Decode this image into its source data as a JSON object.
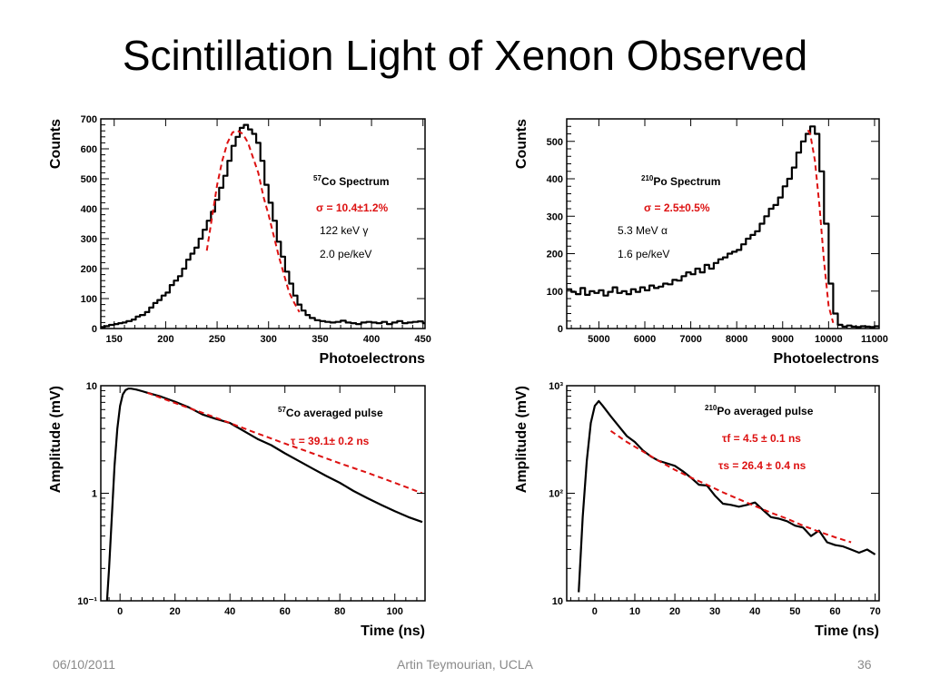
{
  "slide": {
    "title": "Scintillation Light of Xenon Observed",
    "footer_date": "06/10/2011",
    "footer_author": "Artin Teymourian, UCLA",
    "footer_page": "36"
  },
  "colors": {
    "data": "#000000",
    "fit": "#dd1111"
  },
  "chart_data": [
    {
      "type": "line",
      "step": true,
      "xlabel": "Photoelectrons",
      "ylabel": "Counts",
      "xlim": [
        137,
        452
      ],
      "ylim": [
        0,
        700
      ],
      "xticks": [
        150,
        200,
        250,
        300,
        350,
        400,
        450
      ],
      "yticks": [
        0,
        100,
        200,
        300,
        400,
        500,
        600,
        700
      ],
      "annotations": {
        "title_sup": "57",
        "title": "Co Spectrum",
        "sigma": "σ = 10.4±1.2%",
        "energy": "122 keV γ",
        "yield": "2.0 pe/keV"
      },
      "series": [
        {
          "x": [
            137,
            141,
            145,
            150,
            154,
            158,
            162,
            167,
            171,
            175,
            180,
            184,
            188,
            192,
            196,
            200,
            204,
            208,
            212,
            216,
            220,
            224,
            228,
            232,
            236,
            240,
            244,
            248,
            252,
            256,
            260,
            264,
            268,
            272,
            276,
            280,
            284,
            288,
            292,
            296,
            300,
            304,
            308,
            312,
            316,
            320,
            324,
            328,
            332,
            336,
            340,
            345,
            350,
            355,
            360,
            365,
            370,
            375,
            380,
            385,
            390,
            395,
            400,
            405,
            410,
            415,
            420,
            425,
            430,
            435,
            440,
            445,
            450
          ],
          "y": [
            5,
            8,
            12,
            15,
            18,
            20,
            25,
            30,
            40,
            45,
            55,
            70,
            85,
            95,
            110,
            120,
            145,
            160,
            175,
            200,
            230,
            250,
            270,
            300,
            330,
            360,
            390,
            430,
            470,
            510,
            560,
            610,
            640,
            670,
            680,
            665,
            650,
            620,
            560,
            480,
            420,
            360,
            290,
            240,
            190,
            150,
            110,
            80,
            60,
            45,
            35,
            28,
            25,
            22,
            20,
            22,
            26,
            20,
            18,
            15,
            20,
            22,
            20,
            18,
            22,
            15,
            20,
            25,
            18,
            20,
            22,
            24,
            18
          ]
        },
        {
          "x": [
            240,
            245,
            250,
            255,
            260,
            265,
            270,
            275,
            280,
            285,
            290,
            295,
            300,
            305,
            310,
            315,
            320,
            325,
            330
          ],
          "y": [
            260,
            370,
            480,
            560,
            620,
            655,
            660,
            650,
            620,
            570,
            520,
            440,
            380,
            310,
            240,
            180,
            120,
            85,
            55
          ]
        }
      ]
    },
    {
      "type": "line",
      "step": true,
      "xlabel": "Photoelectrons",
      "ylabel": "Counts",
      "xlim": [
        4300,
        11100
      ],
      "ylim": [
        0,
        560
      ],
      "xticks": [
        5000,
        6000,
        7000,
        8000,
        9000,
        10000,
        11000
      ],
      "yticks": [
        0,
        100,
        200,
        300,
        400,
        500
      ],
      "annotations": {
        "title_sup": "210",
        "title": "Po Spectrum",
        "sigma": "σ = 2.5±0.5%",
        "energy": "5.3 MeV α",
        "yield": "1.6 pe/keV"
      },
      "series": [
        {
          "x": [
            4300,
            4400,
            4500,
            4600,
            4700,
            4800,
            4900,
            5000,
            5100,
            5200,
            5300,
            5400,
            5500,
            5600,
            5700,
            5800,
            5900,
            6000,
            6100,
            6200,
            6300,
            6400,
            6500,
            6600,
            6700,
            6800,
            6900,
            7000,
            7100,
            7200,
            7300,
            7400,
            7500,
            7600,
            7700,
            7800,
            7900,
            8000,
            8100,
            8200,
            8300,
            8400,
            8500,
            8600,
            8700,
            8800,
            8900,
            9000,
            9100,
            9200,
            9300,
            9400,
            9500,
            9600,
            9700,
            9800,
            9900,
            10000,
            10100,
            10200,
            10300,
            10400,
            10500,
            10600,
            10700,
            10800,
            10900,
            11000,
            11100
          ],
          "y": [
            105,
            98,
            92,
            108,
            90,
            100,
            95,
            102,
            88,
            98,
            110,
            95,
            100,
            92,
            105,
            98,
            110,
            102,
            115,
            108,
            112,
            120,
            118,
            130,
            128,
            140,
            150,
            145,
            160,
            150,
            170,
            160,
            175,
            185,
            190,
            200,
            205,
            210,
            225,
            240,
            250,
            260,
            280,
            300,
            320,
            330,
            350,
            380,
            400,
            430,
            470,
            500,
            520,
            540,
            520,
            420,
            280,
            120,
            40,
            10,
            5,
            8,
            5,
            4,
            6,
            5,
            4,
            6,
            5
          ]
        },
        {
          "x": [
            9550,
            9600,
            9700,
            9800,
            9900,
            10000,
            10100
          ],
          "y": [
            530,
            520,
            450,
            330,
            180,
            60,
            15
          ]
        }
      ]
    },
    {
      "type": "line",
      "log_y": true,
      "xlabel": "Time (ns)",
      "ylabel": "Amplitude (mV)",
      "xlim": [
        -7,
        111
      ],
      "ylim": [
        0.1,
        10
      ],
      "xticks": [
        0,
        20,
        40,
        60,
        80,
        100
      ],
      "yticks": [
        0.1,
        1,
        10
      ],
      "yticklabels": [
        "10⁻¹",
        "1",
        "10"
      ],
      "annotations": {
        "title_sup": "57",
        "title": "Co averaged pulse",
        "tau": "τ = 39.1±  0.2 ns"
      },
      "series": [
        {
          "x": [
            -5,
            -4,
            -3,
            -2,
            -1,
            0,
            1,
            2,
            3,
            4,
            6,
            8,
            10,
            15,
            20,
            25,
            30,
            35,
            40,
            45,
            50,
            55,
            60,
            65,
            70,
            75,
            80,
            85,
            90,
            95,
            100,
            105,
            110
          ],
          "y": [
            0.08,
            0.2,
            0.6,
            1.8,
            4,
            6.5,
            8.3,
            9.1,
            9.4,
            9.4,
            9.2,
            8.9,
            8.6,
            7.9,
            7.1,
            6.3,
            5.4,
            4.9,
            4.5,
            3.8,
            3.2,
            2.8,
            2.35,
            2.0,
            1.7,
            1.45,
            1.25,
            1.05,
            0.9,
            0.78,
            0.68,
            0.6,
            0.54
          ]
        },
        {
          "x": [
            10,
            20,
            30,
            40,
            50,
            60,
            70,
            80,
            90,
            100,
            110
          ],
          "y": [
            8.6,
            6.9,
            5.6,
            4.5,
            3.6,
            2.9,
            2.35,
            1.9,
            1.55,
            1.25,
            1.0
          ]
        }
      ]
    },
    {
      "type": "line",
      "log_y": true,
      "xlabel": "Time (ns)",
      "ylabel": "Amplitude (mV)",
      "xlim": [
        -7,
        71
      ],
      "ylim": [
        10,
        1000
      ],
      "xticks": [
        0,
        10,
        20,
        30,
        40,
        50,
        60,
        70
      ],
      "yticks": [
        10,
        100,
        1000
      ],
      "yticklabels": [
        "10",
        "10²",
        "10³"
      ],
      "annotations": {
        "title_sup": "210",
        "title": "Po averaged pulse",
        "tau_f": "τf = 4.5 ± 0.1 ns",
        "tau_s": "τs = 26.4 ± 0.4 ns"
      },
      "series": [
        {
          "x": [
            -4,
            -3,
            -2,
            -1,
            0,
            1,
            2,
            4,
            6,
            8,
            10,
            12,
            14,
            16,
            18,
            20,
            22,
            24,
            26,
            28,
            30,
            32,
            34,
            36,
            38,
            40,
            42,
            44,
            46,
            48,
            50,
            52,
            54,
            56,
            58,
            60,
            62,
            64,
            66,
            68,
            70
          ],
          "y": [
            12,
            60,
            200,
            450,
            650,
            720,
            650,
            520,
            420,
            340,
            300,
            250,
            220,
            200,
            190,
            180,
            160,
            140,
            120,
            118,
            95,
            80,
            78,
            75,
            78,
            82,
            70,
            60,
            58,
            55,
            50,
            48,
            40,
            45,
            35,
            33,
            32,
            30,
            28,
            30,
            27
          ]
        },
        {
          "x": [
            4,
            8,
            12,
            16,
            20,
            24,
            28,
            32,
            36,
            40,
            44,
            48,
            52,
            56,
            60,
            64
          ],
          "y": [
            380,
            300,
            245,
            200,
            165,
            140,
            120,
            102,
            88,
            76,
            66,
            58,
            50,
            44,
            39,
            35
          ]
        }
      ]
    }
  ]
}
